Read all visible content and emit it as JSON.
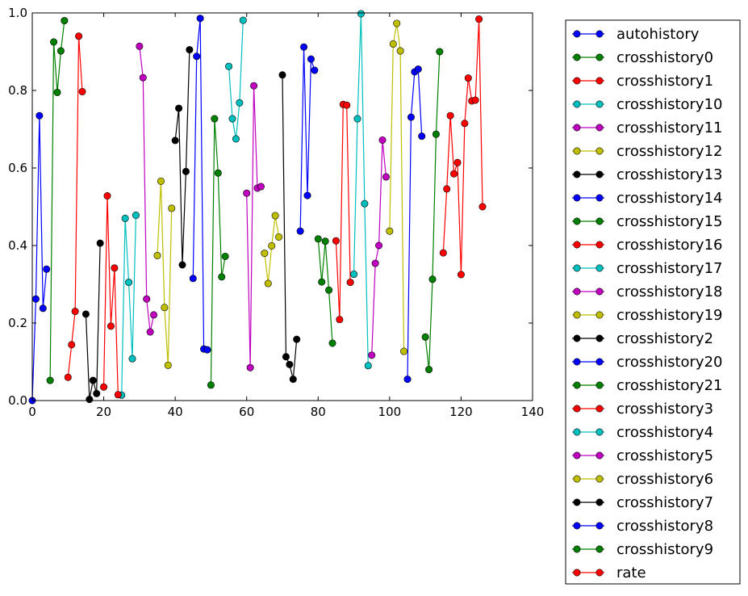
{
  "chart_data": {
    "type": "line",
    "title": "",
    "xlabel": "",
    "ylabel": "",
    "xlim": [
      0,
      140
    ],
    "ylim": [
      0.0,
      1.0
    ],
    "x_ticks": [
      0,
      20,
      40,
      60,
      80,
      100,
      120,
      140
    ],
    "y_ticks": [
      0.0,
      0.2,
      0.4,
      0.6,
      0.8,
      1.0
    ],
    "x_tick_labels": [
      "0",
      "20",
      "40",
      "60",
      "80",
      "100",
      "120",
      "140"
    ],
    "y_tick_labels": [
      "0.0",
      "0.2",
      "0.4",
      "0.6",
      "0.8",
      "1.0"
    ],
    "grid": false,
    "legend_position": "outside-right",
    "series": [
      {
        "name": "autohistory",
        "color": "#0000ff",
        "x": [
          0,
          1,
          2,
          3,
          4
        ],
        "y": [
          0.0,
          0.262,
          0.735,
          0.238,
          0.339
        ]
      },
      {
        "name": "crosshistory0",
        "color": "#008000",
        "x": [
          5,
          6,
          7,
          8,
          9
        ],
        "y": [
          0.052,
          0.925,
          0.795,
          0.902,
          0.98
        ]
      },
      {
        "name": "crosshistory1",
        "color": "#ff0000",
        "x": [
          10,
          11,
          12,
          13,
          14
        ],
        "y": [
          0.06,
          0.144,
          0.23,
          0.94,
          0.797
        ]
      },
      {
        "name": "crosshistory10",
        "color": "#00bfbf",
        "x": [
          25,
          26,
          27,
          28,
          29
        ],
        "y": [
          0.014,
          0.47,
          0.305,
          0.108,
          0.478
        ]
      },
      {
        "name": "crosshistory11",
        "color": "#bf00bf",
        "x": [
          30,
          31,
          32,
          33,
          34
        ],
        "y": [
          0.914,
          0.833,
          0.262,
          0.177,
          0.221
        ]
      },
      {
        "name": "crosshistory12",
        "color": "#bfbf00",
        "x": [
          35,
          36,
          37,
          38,
          39
        ],
        "y": [
          0.374,
          0.566,
          0.24,
          0.091,
          0.496
        ]
      },
      {
        "name": "crosshistory13",
        "color": "#000000",
        "x": [
          40,
          41,
          42,
          43,
          44
        ],
        "y": [
          0.671,
          0.754,
          0.35,
          0.591,
          0.905
        ]
      },
      {
        "name": "crosshistory14",
        "color": "#0000ff",
        "x": [
          45,
          46,
          47,
          48,
          49
        ],
        "y": [
          0.315,
          0.888,
          0.986,
          0.133,
          0.131
        ]
      },
      {
        "name": "crosshistory15",
        "color": "#008000",
        "x": [
          50,
          51,
          52,
          53,
          54
        ],
        "y": [
          0.04,
          0.727,
          0.587,
          0.319,
          0.372
        ]
      },
      {
        "name": "crosshistory16",
        "color": "#ff0000",
        "x": [
          20,
          21,
          22,
          23,
          24
        ],
        "y": [
          0.035,
          0.528,
          0.192,
          0.342,
          0.015
        ]
      },
      {
        "name": "crosshistory17",
        "color": "#00bfbf",
        "x": [
          55,
          56,
          57,
          58,
          59
        ],
        "y": [
          0.862,
          0.727,
          0.675,
          0.768,
          0.981
        ]
      },
      {
        "name": "crosshistory18",
        "color": "#bf00bf",
        "x": [
          60,
          61,
          62,
          63,
          64
        ],
        "y": [
          0.535,
          0.085,
          0.812,
          0.548,
          0.552
        ]
      },
      {
        "name": "crosshistory19",
        "color": "#bfbf00",
        "x": [
          65,
          66,
          67,
          68,
          69
        ],
        "y": [
          0.38,
          0.302,
          0.399,
          0.477,
          0.422
        ]
      },
      {
        "name": "crosshistory2",
        "color": "#000000",
        "x": [
          15,
          16,
          17,
          18,
          19
        ],
        "y": [
          0.223,
          0.003,
          0.052,
          0.018,
          0.406
        ]
      },
      {
        "name": "crosshistory20",
        "color": "#0000ff",
        "x": [
          75,
          76,
          77,
          78,
          79
        ],
        "y": [
          0.437,
          0.912,
          0.529,
          0.881,
          0.852
        ]
      },
      {
        "name": "crosshistory21",
        "color": "#008000",
        "x": [
          80,
          81,
          82,
          83,
          84
        ],
        "y": [
          0.417,
          0.306,
          0.411,
          0.285,
          0.148
        ]
      },
      {
        "name": "crosshistory3",
        "color": "#ff0000",
        "x": [
          85,
          86,
          87,
          88,
          89
        ],
        "y": [
          0.412,
          0.209,
          0.764,
          0.762,
          0.305
        ]
      },
      {
        "name": "crosshistory4",
        "color": "#00bfbf",
        "x": [
          90,
          91,
          92,
          93,
          94
        ],
        "y": [
          0.326,
          0.727,
          0.998,
          0.508,
          0.09
        ]
      },
      {
        "name": "crosshistory5",
        "color": "#bf00bf",
        "x": [
          95,
          96,
          97,
          98,
          99
        ],
        "y": [
          0.117,
          0.354,
          0.4,
          0.672,
          0.577
        ]
      },
      {
        "name": "crosshistory6",
        "color": "#bfbf00",
        "x": [
          100,
          101,
          102,
          103,
          104
        ],
        "y": [
          0.437,
          0.92,
          0.973,
          0.902,
          0.127
        ]
      },
      {
        "name": "crosshistory7",
        "color": "#000000",
        "x": [
          70,
          71,
          72,
          73,
          74
        ],
        "y": [
          0.84,
          0.113,
          0.093,
          0.055,
          0.158
        ]
      },
      {
        "name": "crosshistory8",
        "color": "#0000ff",
        "x": [
          105,
          106,
          107,
          108,
          109
        ],
        "y": [
          0.055,
          0.731,
          0.848,
          0.855,
          0.682
        ]
      },
      {
        "name": "crosshistory9",
        "color": "#008000",
        "x": [
          110,
          111,
          112,
          113,
          114
        ],
        "y": [
          0.164,
          0.08,
          0.313,
          0.687,
          0.9
        ]
      },
      {
        "name": "rate",
        "color": "#ff0000",
        "x": [
          115,
          116,
          117,
          118,
          119,
          120,
          121,
          122,
          123,
          124,
          125,
          126
        ],
        "y": [
          0.381,
          0.546,
          0.735,
          0.585,
          0.614,
          0.325,
          0.715,
          0.832,
          0.773,
          0.775,
          0.984,
          0.5
        ]
      }
    ]
  }
}
